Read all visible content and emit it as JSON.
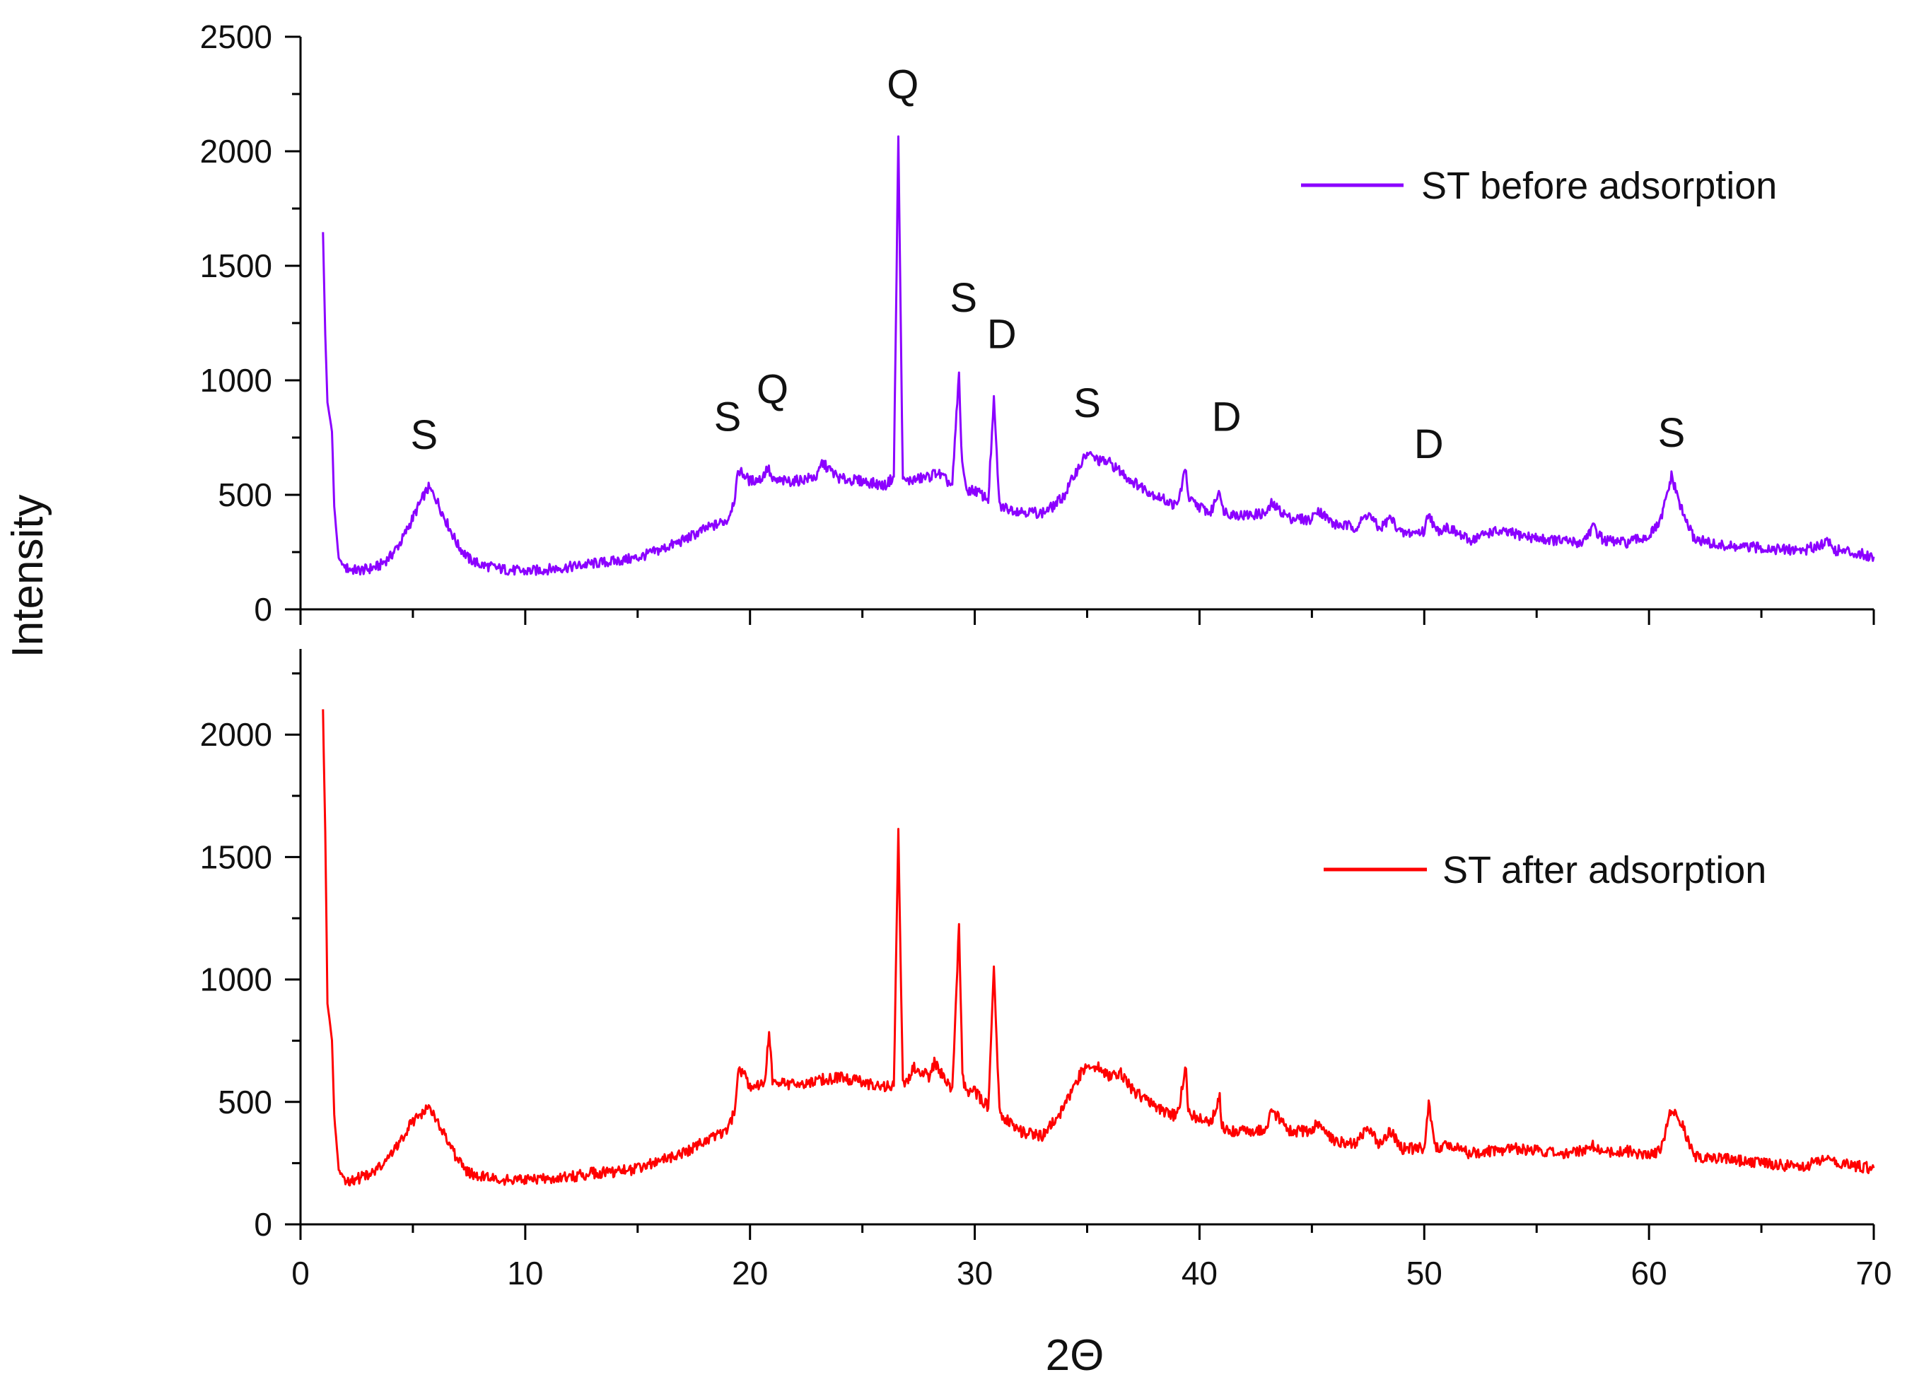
{
  "chart_data": [
    {
      "type": "line",
      "panel": "top",
      "title": "",
      "xlabel": "2Θ",
      "ylabel": "Intensity",
      "xlim": [
        0,
        70
      ],
      "ylim": [
        0,
        2500
      ],
      "x_ticks": [
        "0",
        "10",
        "20",
        "30",
        "40",
        "50",
        "60",
        "70"
      ],
      "y_ticks": [
        "0",
        "500",
        "1000",
        "1500",
        "2000",
        "2500"
      ],
      "y_tick_values": [
        0,
        500,
        1000,
        1500,
        2000,
        2500
      ],
      "grid": false,
      "legend_position": "top-right",
      "series": [
        {
          "name": "ST before adsorption",
          "color": "#8B00FF",
          "x": [
            1.0,
            1.1,
            1.2,
            1.4,
            1.5,
            1.7,
            2.0,
            2.5,
            3.0,
            3.5,
            4.0,
            4.5,
            5.0,
            5.5,
            5.7,
            6.0,
            6.5,
            7.0,
            7.5,
            8.0,
            9.0,
            10.0,
            11.0,
            12.0,
            13.0,
            14.0,
            15.0,
            16.0,
            17.0,
            18.0,
            19.0,
            19.3,
            19.5,
            19.8,
            20.0,
            20.5,
            20.8,
            21.0,
            22.0,
            23.0,
            23.2,
            24.0,
            25.0,
            26.0,
            26.4,
            26.6,
            26.8,
            27.0,
            28.0,
            28.3,
            29.0,
            29.3,
            29.4,
            29.6,
            30.0,
            30.6,
            30.85,
            31.1,
            31.5,
            32.0,
            33.0,
            33.5,
            34.0,
            34.5,
            35.0,
            35.5,
            36.0,
            36.5,
            37.0,
            38.0,
            39.0,
            39.4,
            39.5,
            39.8,
            40.5,
            40.9,
            41.0,
            41.3,
            42.0,
            43.0,
            43.2,
            44.0,
            45.0,
            45.2,
            46.0,
            47.0,
            47.5,
            48.0,
            48.5,
            49.0,
            50.0,
            50.2,
            50.5,
            51.0,
            52.0,
            53.0,
            54.0,
            55.0,
            56.0,
            57.0,
            57.5,
            58.0,
            59.0,
            60.0,
            60.5,
            61.0,
            61.5,
            62.0,
            63.0,
            64.0,
            65.0,
            66.0,
            67.0,
            68.0,
            68.2,
            69.0,
            70.0
          ],
          "y": [
            1650,
            1200,
            900,
            780,
            450,
            220,
            180,
            170,
            175,
            190,
            230,
            300,
            400,
            500,
            530,
            490,
            380,
            280,
            220,
            195,
            175,
            165,
            175,
            185,
            200,
            210,
            225,
            260,
            300,
            350,
            390,
            480,
            610,
            580,
            560,
            570,
            620,
            560,
            560,
            580,
            640,
            570,
            560,
            540,
            580,
            2060,
            560,
            560,
            580,
            600,
            540,
            1030,
            700,
            520,
            520,
            480,
            910,
            450,
            440,
            430,
            420,
            450,
            500,
            600,
            680,
            650,
            640,
            600,
            560,
            500,
            450,
            620,
            480,
            460,
            420,
            530,
            440,
            420,
            410,
            420,
            460,
            400,
            390,
            440,
            370,
            360,
            420,
            350,
            400,
            330,
            340,
            430,
            340,
            360,
            300,
            340,
            330,
            310,
            300,
            290,
            360,
            300,
            290,
            320,
            380,
            580,
            420,
            310,
            280,
            270,
            270,
            260,
            260,
            300,
            260,
            250,
            230
          ]
        }
      ],
      "annotations": [
        {
          "text": "S",
          "x": 5.5,
          "y": 700
        },
        {
          "text": "S",
          "x": 19.0,
          "y": 780
        },
        {
          "text": "Q",
          "x": 21.0,
          "y": 900
        },
        {
          "text": "Q",
          "x": 26.8,
          "y": 2230
        },
        {
          "text": "S",
          "x": 29.5,
          "y": 1300
        },
        {
          "text": "D",
          "x": 31.2,
          "y": 1140
        },
        {
          "text": "S",
          "x": 35.0,
          "y": 840
        },
        {
          "text": "D",
          "x": 41.2,
          "y": 780
        },
        {
          "text": "D",
          "x": 50.2,
          "y": 660
        },
        {
          "text": "S",
          "x": 61.0,
          "y": 710
        }
      ]
    },
    {
      "type": "line",
      "panel": "bottom",
      "title": "",
      "xlabel": "2Θ",
      "ylabel": "Intensity",
      "xlim": [
        0,
        70
      ],
      "ylim": [
        0,
        2350
      ],
      "x_ticks": [
        "0",
        "10",
        "20",
        "30",
        "40",
        "50",
        "60",
        "70"
      ],
      "y_ticks": [
        "0",
        "500",
        "1000",
        "1500",
        "2000"
      ],
      "y_tick_values": [
        0,
        500,
        1000,
        1500,
        2000
      ],
      "grid": false,
      "legend_position": "top-right",
      "series": [
        {
          "name": "ST after adsorption",
          "color": "#FF0000",
          "x": [
            1.0,
            1.1,
            1.2,
            1.4,
            1.5,
            1.7,
            2.0,
            2.5,
            3.0,
            3.5,
            4.0,
            4.5,
            5.0,
            5.5,
            5.7,
            6.0,
            6.5,
            7.0,
            7.5,
            8.0,
            9.0,
            10.0,
            11.0,
            12.0,
            13.0,
            14.0,
            15.0,
            16.0,
            17.0,
            18.0,
            19.0,
            19.3,
            19.5,
            19.8,
            20.0,
            20.5,
            20.7,
            20.85,
            21.0,
            22.0,
            23.0,
            24.0,
            25.0,
            26.0,
            26.4,
            26.6,
            26.8,
            27.0,
            27.3,
            28.0,
            28.2,
            29.0,
            29.3,
            29.45,
            29.6,
            30.0,
            30.6,
            30.85,
            31.1,
            31.5,
            32.0,
            33.0,
            33.5,
            34.0,
            34.5,
            35.0,
            35.5,
            36.0,
            36.5,
            37.0,
            38.0,
            39.0,
            39.4,
            39.5,
            39.8,
            40.5,
            40.9,
            41.0,
            41.3,
            42.0,
            43.0,
            43.2,
            44.0,
            45.0,
            45.2,
            46.0,
            47.0,
            47.5,
            48.0,
            48.5,
            49.0,
            50.0,
            50.2,
            50.5,
            51.0,
            52.0,
            53.0,
            54.0,
            55.0,
            56.0,
            57.0,
            57.5,
            58.0,
            59.0,
            60.0,
            60.5,
            61.0,
            61.5,
            62.0,
            63.0,
            64.0,
            65.0,
            66.0,
            67.0,
            68.0,
            68.2,
            69.0,
            70.0
          ],
          "y": [
            2100,
            1600,
            900,
            750,
            450,
            220,
            180,
            185,
            200,
            230,
            280,
            350,
            420,
            460,
            470,
            440,
            350,
            260,
            210,
            195,
            185,
            180,
            185,
            195,
            210,
            215,
            225,
            260,
            290,
            340,
            380,
            460,
            640,
            600,
            560,
            570,
            600,
            800,
            580,
            570,
            590,
            600,
            580,
            560,
            570,
            1620,
            570,
            580,
            640,
            600,
            660,
            540,
            1220,
            620,
            540,
            540,
            480,
            1040,
            460,
            420,
            380,
            360,
            420,
            480,
            580,
            660,
            640,
            600,
            620,
            550,
            480,
            440,
            640,
            460,
            440,
            410,
            520,
            400,
            380,
            380,
            390,
            470,
            380,
            380,
            420,
            340,
            330,
            400,
            320,
            380,
            310,
            310,
            500,
            310,
            330,
            290,
            300,
            310,
            300,
            290,
            300,
            320,
            290,
            300,
            280,
            300,
            470,
            400,
            280,
            270,
            260,
            250,
            240,
            240,
            270,
            250,
            240,
            230
          ]
        }
      ],
      "annotations": []
    }
  ]
}
